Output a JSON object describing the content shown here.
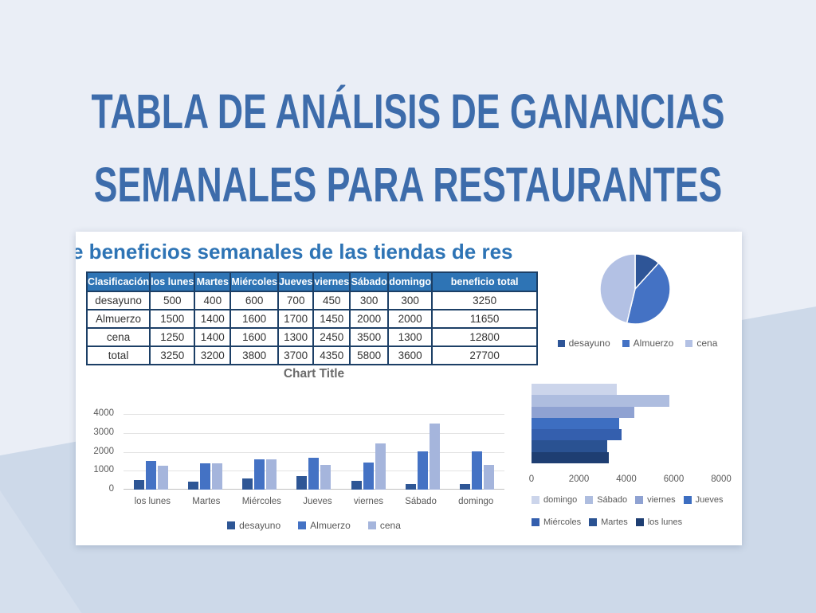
{
  "colors": {
    "heading_text": "#3d6cab",
    "background_light": "#eaeef6",
    "background_shade": "#cdd9e9",
    "card_background": "#ffffff",
    "table_header_bg": "#2e74b5",
    "table_border": "#1c3f66",
    "table_title_text": "#2e74b5",
    "chart_text": "#595959"
  },
  "heading": {
    "line1": "TABLA DE ANÁLISIS DE GANANCIAS",
    "line2": "SEMANALES PARA RESTAURANTES"
  },
  "card": {
    "table_title": "e beneficios semanales de las tiendas de res"
  },
  "table": {
    "headers": [
      "Clasificación",
      "los lunes",
      "Martes",
      "Miércoles",
      "Jueves",
      "viernes",
      "Sábado",
      "domingo",
      "beneficio total"
    ],
    "rows": [
      [
        "desayuno",
        "500",
        "400",
        "600",
        "700",
        "450",
        "300",
        "300",
        "3250"
      ],
      [
        "Almuerzo",
        "1500",
        "1400",
        "1600",
        "1700",
        "1450",
        "2000",
        "2000",
        "11650"
      ],
      [
        "cena",
        "1250",
        "1400",
        "1600",
        "1300",
        "2450",
        "3500",
        "1300",
        "12800"
      ],
      [
        "total",
        "3250",
        "3200",
        "3800",
        "3700",
        "4350",
        "5800",
        "3600",
        "27700"
      ]
    ]
  },
  "chart_data": [
    {
      "type": "pie",
      "name": "meal-share-pie",
      "categories": [
        "desayuno",
        "Almuerzo",
        "cena"
      ],
      "values": [
        3250,
        11650,
        12800
      ],
      "colors": [
        "#2e5597",
        "#4472c4",
        "#b3c1e4"
      ],
      "legend_position": "bottom"
    },
    {
      "type": "bar",
      "name": "weekday-clustered-columns",
      "title": "Chart Title",
      "categories": [
        "los lunes",
        "Martes",
        "Miércoles",
        "Jueves",
        "viernes",
        "Sábado",
        "domingo"
      ],
      "series": [
        {
          "name": "desayuno",
          "color": "#2e5695",
          "values": [
            500,
            400,
            600,
            700,
            450,
            300,
            300
          ]
        },
        {
          "name": "Almuerzo",
          "color": "#4472c4",
          "values": [
            1500,
            1400,
            1600,
            1700,
            1450,
            2000,
            2000
          ]
        },
        {
          "name": "cena",
          "color": "#a5b5dc",
          "values": [
            1250,
            1400,
            1600,
            1300,
            2450,
            3500,
            1300
          ]
        }
      ],
      "ylim": [
        0,
        4000
      ],
      "yticks": [
        0,
        1000,
        2000,
        3000,
        4000
      ],
      "grid": true,
      "legend_position": "bottom"
    },
    {
      "type": "bar",
      "orientation": "horizontal",
      "name": "daily-total-hbar",
      "categories": [
        "domingo",
        "Sábado",
        "viernes",
        "Jueves",
        "Miércoles",
        "Martes",
        "los lunes"
      ],
      "values": [
        3600,
        5800,
        4350,
        3700,
        3800,
        3200,
        3250
      ],
      "colors": [
        "#ccd5eb",
        "#aebddf",
        "#8fa2d2",
        "#3d6ec1",
        "#345fae",
        "#2a5292",
        "#1e3e72"
      ],
      "xlim": [
        0,
        8000
      ],
      "xticks": [
        0,
        2000,
        4000,
        6000,
        8000
      ],
      "legend_rows": [
        [
          "domingo",
          "Sábado",
          "viernes",
          "Jueves"
        ],
        [
          "Miércoles",
          "Martes",
          "los lunes"
        ]
      ]
    }
  ]
}
